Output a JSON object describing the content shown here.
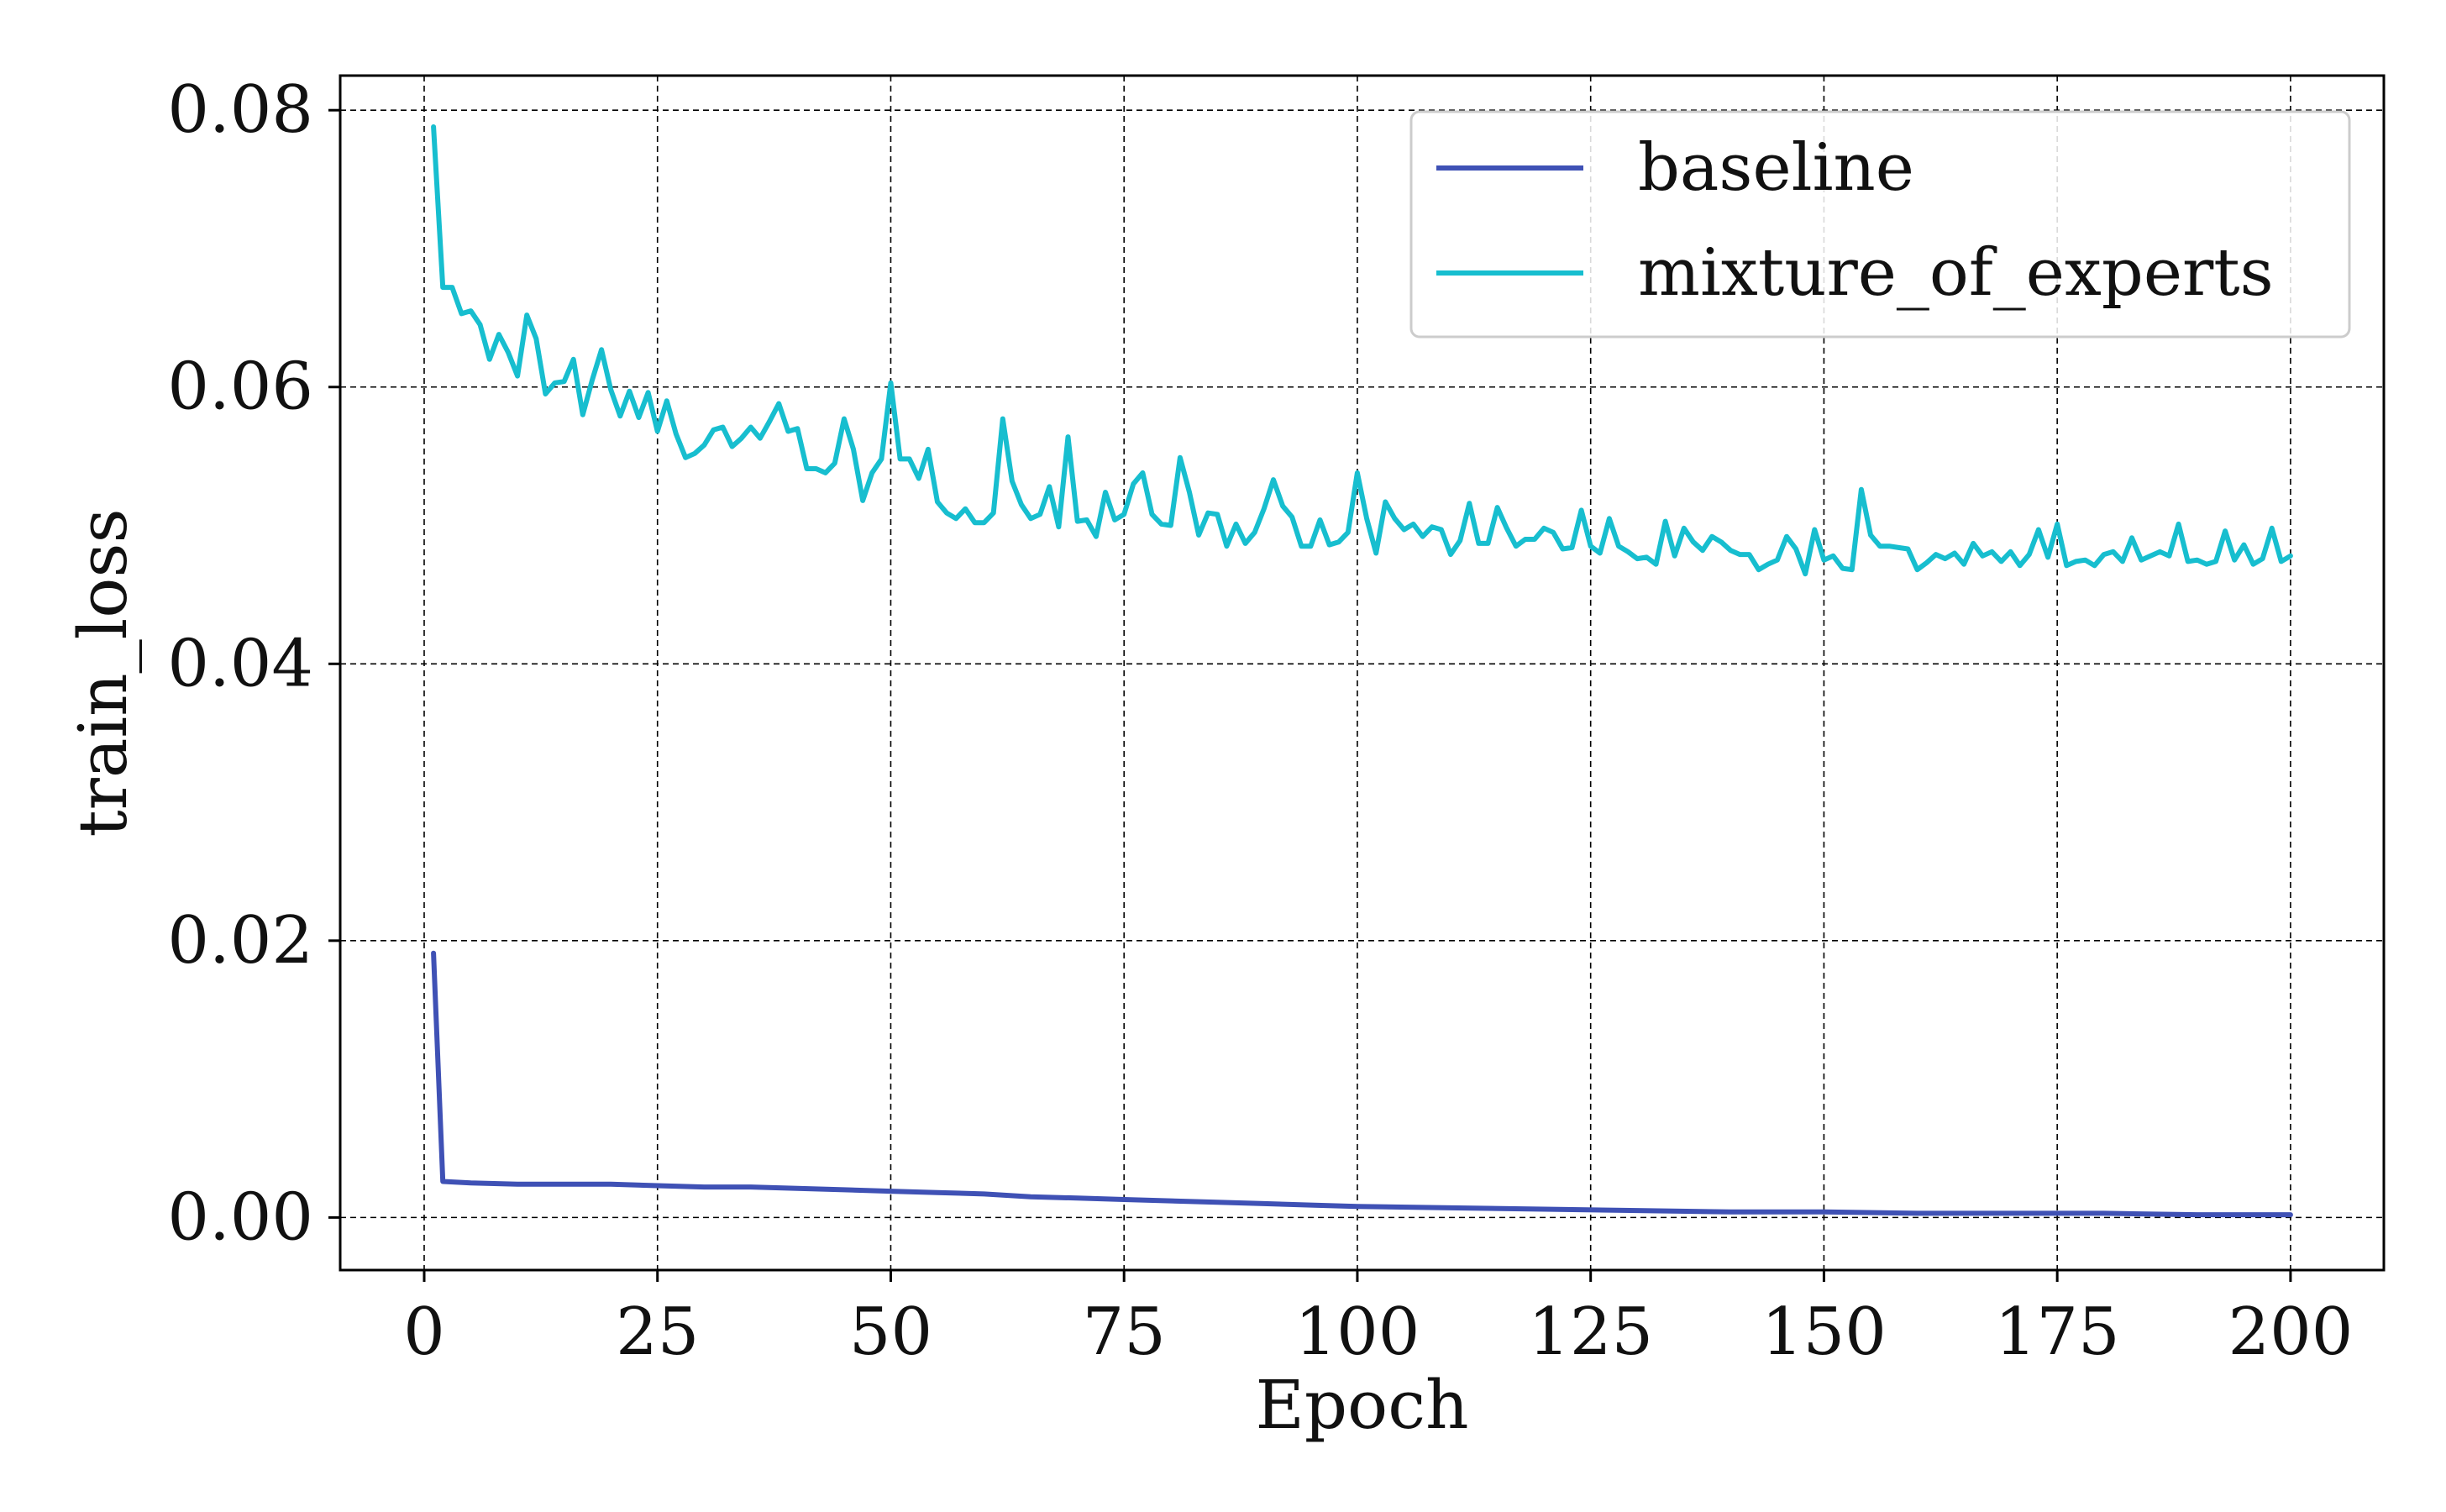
{
  "chart_data": {
    "type": "line",
    "title": "",
    "xlabel": "Epoch",
    "ylabel": "train_loss",
    "xlim": [
      -9,
      210
    ],
    "ylim": [
      -0.0038,
      0.0825
    ],
    "xticks": [
      0,
      25,
      50,
      75,
      100,
      125,
      150,
      175,
      200
    ],
    "xtick_labels": [
      "0",
      "25",
      "50",
      "75",
      "100",
      "125",
      "150",
      "175",
      "200"
    ],
    "yticks": [
      0.0,
      0.02,
      0.04,
      0.06,
      0.08
    ],
    "ytick_labels": [
      "0.00",
      "0.02",
      "0.04",
      "0.06",
      "0.08"
    ],
    "grid": true,
    "legend_position": "top-right",
    "series": [
      {
        "name": "baseline",
        "color": "#3f51b5",
        "x": [
          1,
          2,
          5,
          10,
          15,
          20,
          25,
          30,
          35,
          40,
          45,
          50,
          55,
          60,
          65,
          70,
          75,
          80,
          85,
          90,
          95,
          100,
          110,
          120,
          130,
          140,
          150,
          160,
          170,
          180,
          190,
          200
        ],
        "y": [
          0.0191,
          0.0026,
          0.0025,
          0.0024,
          0.0024,
          0.0024,
          0.0023,
          0.0022,
          0.0022,
          0.0021,
          0.002,
          0.0019,
          0.0018,
          0.0017,
          0.0015,
          0.0014,
          0.0013,
          0.0012,
          0.0011,
          0.001,
          0.0009,
          0.0008,
          0.0007,
          0.0006,
          0.0005,
          0.0004,
          0.0004,
          0.0003,
          0.0003,
          0.0003,
          0.0002,
          0.0002
        ]
      },
      {
        "name": "mixture_of_experts",
        "color": "#17becf",
        "x": [
          1,
          2,
          3,
          4,
          5,
          6,
          7,
          8,
          9,
          10,
          11,
          12,
          13,
          14,
          15,
          16,
          17,
          18,
          19,
          20,
          21,
          22,
          23,
          24,
          25,
          26,
          27,
          28,
          29,
          30,
          31,
          32,
          33,
          34,
          35,
          36,
          37,
          38,
          39,
          40,
          41,
          42,
          43,
          44,
          45,
          46,
          47,
          48,
          49,
          50,
          51,
          52,
          53,
          54,
          55,
          56,
          57,
          58,
          59,
          60,
          61,
          62,
          63,
          64,
          65,
          66,
          67,
          68,
          69,
          70,
          71,
          72,
          73,
          74,
          75,
          76,
          77,
          78,
          79,
          80,
          81,
          82,
          83,
          84,
          85,
          86,
          87,
          88,
          89,
          90,
          91,
          92,
          93,
          94,
          95,
          96,
          97,
          98,
          99,
          100,
          101,
          102,
          103,
          104,
          105,
          106,
          107,
          108,
          109,
          110,
          111,
          112,
          113,
          114,
          115,
          116,
          117,
          118,
          119,
          120,
          121,
          122,
          123,
          124,
          125,
          126,
          127,
          128,
          129,
          130,
          131,
          132,
          133,
          134,
          135,
          136,
          137,
          138,
          139,
          140,
          141,
          142,
          143,
          144,
          145,
          146,
          147,
          148,
          149,
          150,
          151,
          152,
          153,
          154,
          155,
          156,
          157,
          158,
          159,
          160,
          161,
          162,
          163,
          164,
          165,
          166,
          167,
          168,
          169,
          170,
          171,
          172,
          173,
          174,
          175,
          176,
          177,
          178,
          179,
          180,
          181,
          182,
          183,
          184,
          185,
          186,
          187,
          188,
          189,
          190,
          191,
          192,
          193,
          194,
          195,
          196,
          197,
          198,
          199,
          200
        ],
        "y": [
          0.0788,
          0.0672,
          0.0672,
          0.0653,
          0.0655,
          0.0645,
          0.062,
          0.0638,
          0.0625,
          0.0608,
          0.0652,
          0.0635,
          0.0595,
          0.0603,
          0.0604,
          0.062,
          0.058,
          0.0605,
          0.0627,
          0.0598,
          0.0579,
          0.0597,
          0.0578,
          0.0596,
          0.0568,
          0.059,
          0.0566,
          0.0549,
          0.0552,
          0.0558,
          0.0569,
          0.0571,
          0.0557,
          0.0563,
          0.0571,
          0.0563,
          0.0575,
          0.0588,
          0.0568,
          0.057,
          0.0541,
          0.0541,
          0.0538,
          0.0545,
          0.0577,
          0.0555,
          0.0518,
          0.0538,
          0.0548,
          0.0603,
          0.0548,
          0.0548,
          0.0534,
          0.0555,
          0.0517,
          0.0509,
          0.0505,
          0.0512,
          0.0502,
          0.0502,
          0.0509,
          0.0577,
          0.0532,
          0.0515,
          0.0505,
          0.0508,
          0.0528,
          0.0499,
          0.0564,
          0.0503,
          0.0504,
          0.0492,
          0.0524,
          0.0504,
          0.0508,
          0.053,
          0.0538,
          0.0508,
          0.0501,
          0.05,
          0.0549,
          0.0524,
          0.0493,
          0.0509,
          0.0508,
          0.0485,
          0.0501,
          0.0487,
          0.0495,
          0.0512,
          0.0533,
          0.0514,
          0.0506,
          0.0485,
          0.0485,
          0.0504,
          0.0486,
          0.0488,
          0.0495,
          0.0538,
          0.0505,
          0.048,
          0.0517,
          0.0505,
          0.0497,
          0.0501,
          0.0492,
          0.0499,
          0.0497,
          0.0479,
          0.0489,
          0.0516,
          0.0487,
          0.0487,
          0.0513,
          0.0498,
          0.0485,
          0.049,
          0.049,
          0.0498,
          0.0495,
          0.0483,
          0.0484,
          0.0511,
          0.0485,
          0.048,
          0.0505,
          0.0485,
          0.0481,
          0.0476,
          0.0477,
          0.0472,
          0.0503,
          0.0478,
          0.0498,
          0.0488,
          0.0482,
          0.0492,
          0.0488,
          0.0482,
          0.0479,
          0.0479,
          0.0468,
          0.0472,
          0.0475,
          0.0492,
          0.0483,
          0.0465,
          0.0497,
          0.0475,
          0.0478,
          0.0469,
          0.0468,
          0.0526,
          0.0493,
          0.0485,
          0.0485,
          0.0484,
          0.0483,
          0.0468,
          0.0473,
          0.0479,
          0.0476,
          0.048,
          0.0472,
          0.0487,
          0.0478,
          0.0481,
          0.0474,
          0.0481,
          0.0471,
          0.0479,
          0.0497,
          0.0477,
          0.0501,
          0.0471,
          0.0474,
          0.0475,
          0.0471,
          0.0479,
          0.0481,
          0.0474,
          0.0491,
          0.0475,
          0.0478,
          0.0481,
          0.0478,
          0.0501,
          0.0474,
          0.0475,
          0.0472,
          0.0474,
          0.0496,
          0.0475,
          0.0486,
          0.0472,
          0.0476,
          0.0498,
          0.0474,
          0.0478
        ]
      }
    ]
  }
}
